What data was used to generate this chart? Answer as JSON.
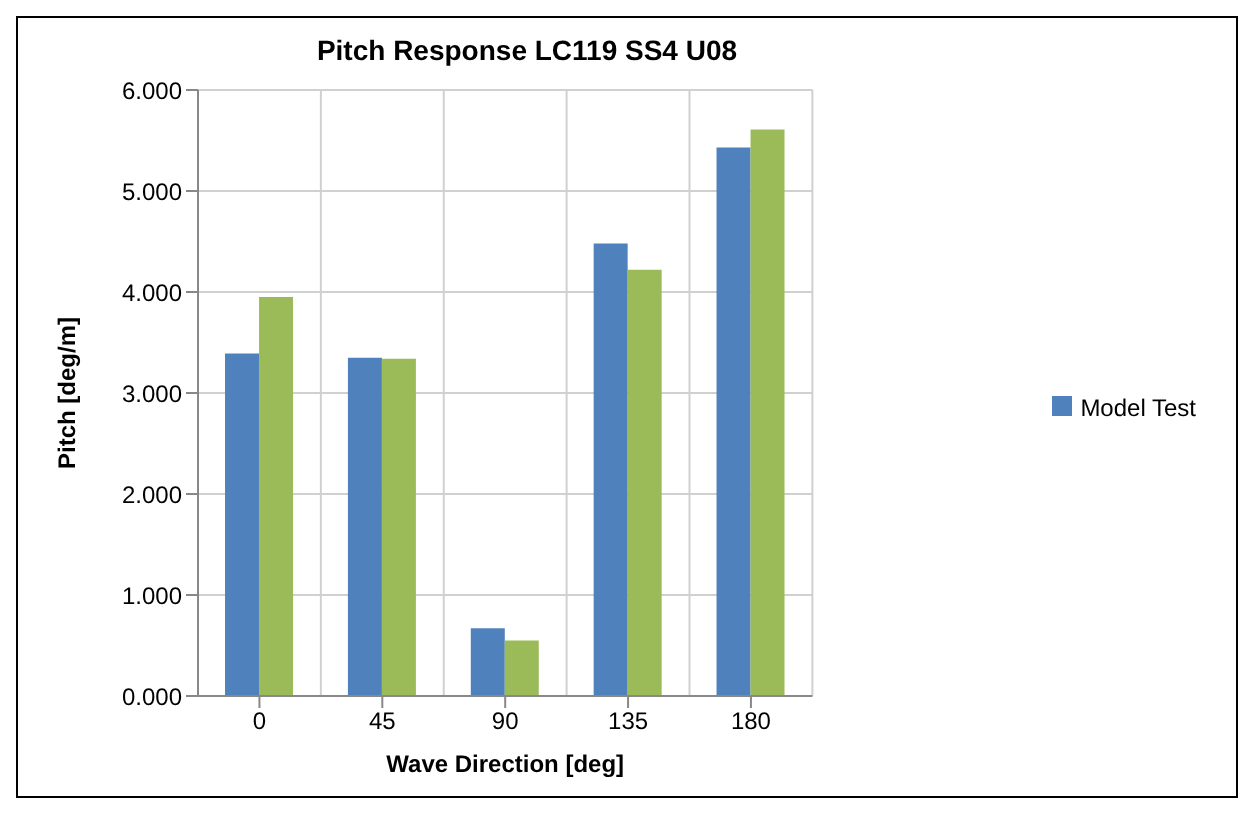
{
  "chart_data": {
    "type": "bar",
    "title": "Pitch Response LC119 SS4 U08",
    "xlabel": "Wave Direction [deg]",
    "ylabel": "Pitch [deg/m]",
    "categories": [
      "0",
      "45",
      "90",
      "135",
      "180"
    ],
    "series": [
      {
        "name": "Model Test",
        "color": "#4f81bd",
        "values": [
          3.39,
          3.35,
          0.67,
          4.48,
          5.43
        ]
      },
      {
        "color": "#9bbb59",
        "values": [
          3.95,
          3.34,
          0.55,
          4.22,
          5.61
        ]
      }
    ],
    "ylim": [
      0,
      6
    ],
    "yticks": [
      {
        "value": 0,
        "label": "0.000"
      },
      {
        "value": 1,
        "label": "1.000"
      },
      {
        "value": 2,
        "label": "2.000"
      },
      {
        "value": 3,
        "label": "3.000"
      },
      {
        "value": 4,
        "label": "4.000"
      },
      {
        "value": 5,
        "label": "5.000"
      },
      {
        "value": 6,
        "label": "6.000"
      }
    ],
    "grid": true,
    "legend": "right"
  }
}
